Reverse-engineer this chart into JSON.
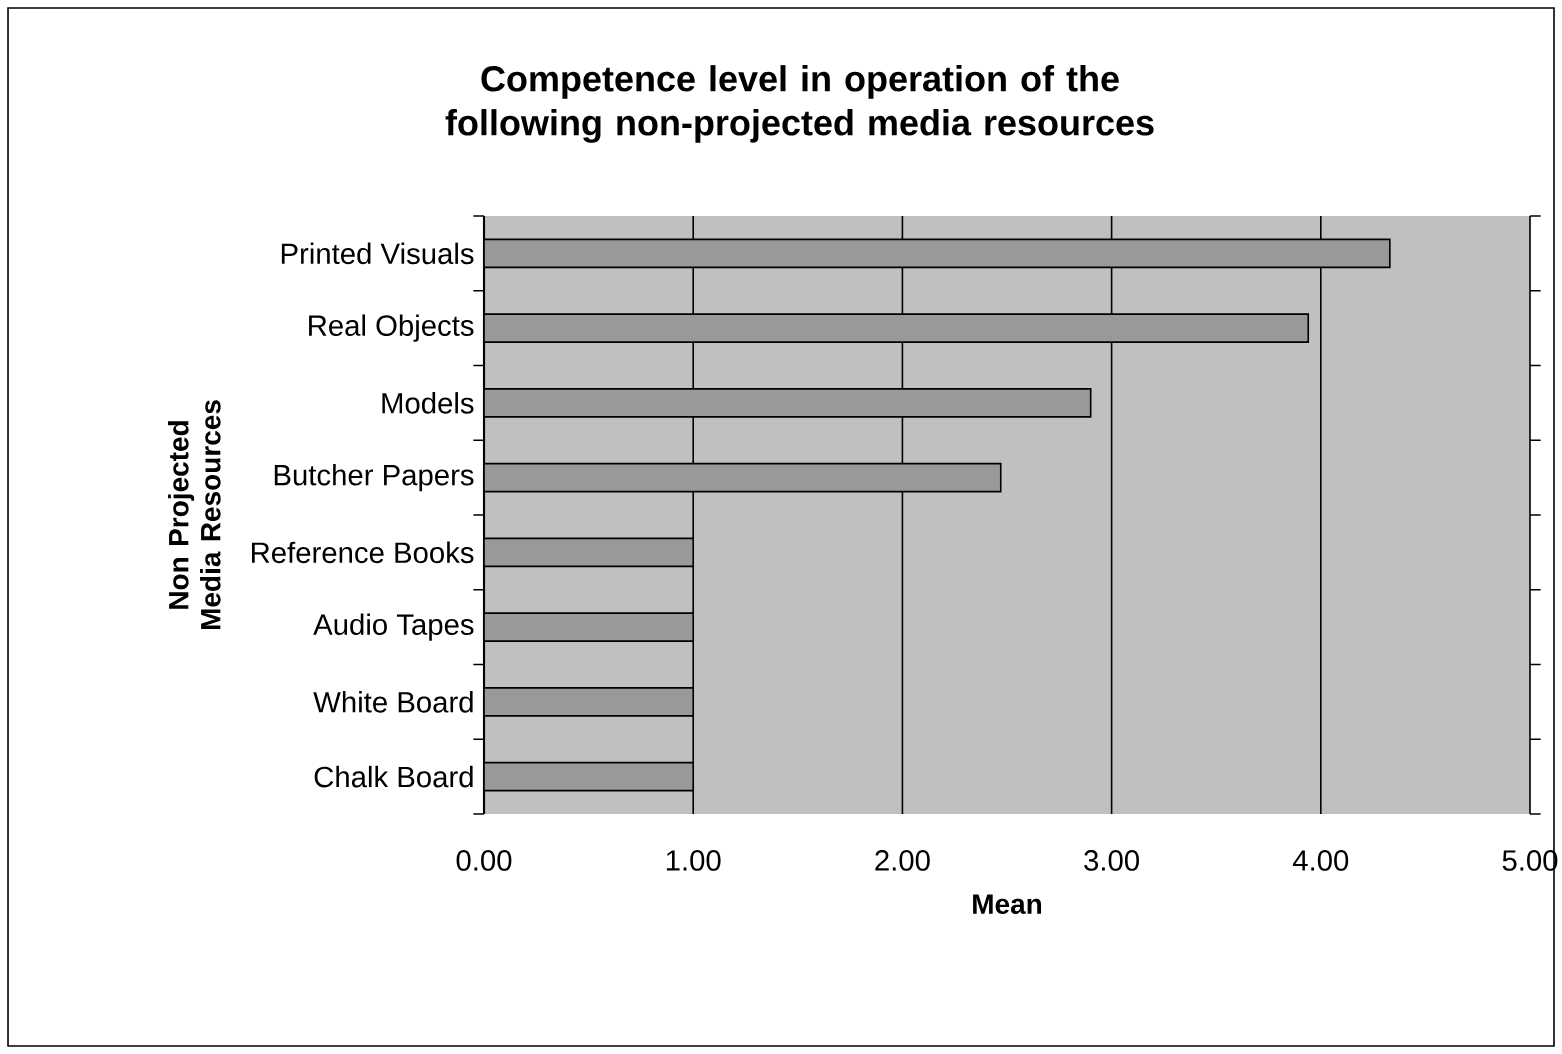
{
  "chart_data": {
    "type": "bar",
    "orientation": "horizontal",
    "title": "Competence level in operation of the following non-projected media resources",
    "xlabel": "Mean",
    "ylabel": "Non Projected Media Resources",
    "categories": [
      "Printed Visuals",
      "Real Objects",
      "Models",
      "Butcher Papers",
      "Reference Books",
      "Audio Tapes",
      "White Board",
      "Chalk Board"
    ],
    "values": [
      4.33,
      3.94,
      2.9,
      2.47,
      1.0,
      1.0,
      1.0,
      1.0
    ],
    "color": "#999999",
    "xlim": [
      0,
      5
    ],
    "xticks": [
      {
        "value": 0,
        "label": "0.00"
      },
      {
        "value": 1,
        "label": "1.00"
      },
      {
        "value": 2,
        "label": "2.00"
      },
      {
        "value": 3,
        "label": "3.00"
      },
      {
        "value": 4,
        "label": "4.00"
      },
      {
        "value": 5,
        "label": "5.00"
      }
    ],
    "grid": "x"
  }
}
